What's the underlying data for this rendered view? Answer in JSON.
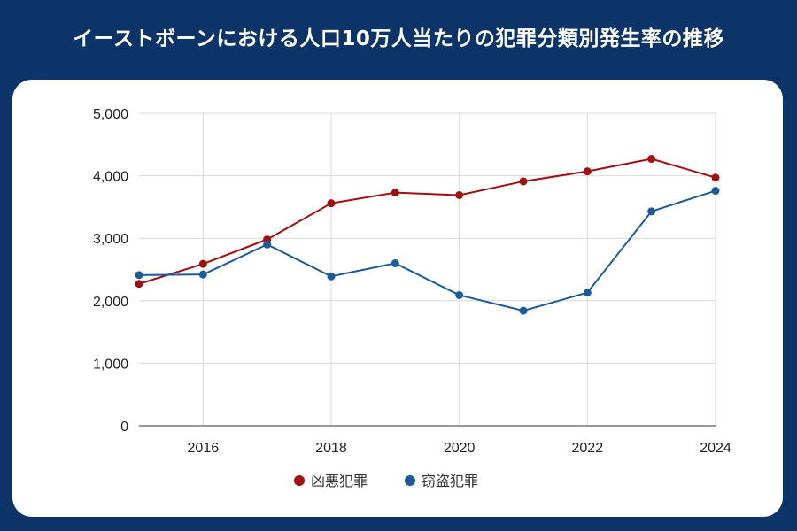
{
  "title": "イーストボーンにおける人口10万人当たりの犯罪分類別発生率の推移",
  "chart_data": {
    "type": "line",
    "title": "イーストボーンにおける人口10万人当たりの犯罪分類別発生率の推移",
    "x": [
      2015,
      2016,
      2017,
      2018,
      2019,
      2020,
      2021,
      2022,
      2023,
      2024
    ],
    "xticks": [
      "2016",
      "2018",
      "2020",
      "2022",
      "2024"
    ],
    "yticks": [
      "0",
      "1,000",
      "2,000",
      "3,000",
      "4,000",
      "5,000"
    ],
    "xlim": [
      2015,
      2024
    ],
    "ylim": [
      0,
      5000
    ],
    "grid": true,
    "legend_position": "bottom",
    "series": [
      {
        "name": "凶悪犯罪",
        "color": "#a01010",
        "values": [
          2270,
          2590,
          2980,
          3560,
          3730,
          3690,
          3910,
          4070,
          4270,
          3970
        ]
      },
      {
        "name": "窃盗犯罪",
        "color": "#1c5b98",
        "values": [
          2410,
          2420,
          2900,
          2390,
          2600,
          2090,
          1840,
          2130,
          3430,
          3760
        ]
      }
    ]
  }
}
